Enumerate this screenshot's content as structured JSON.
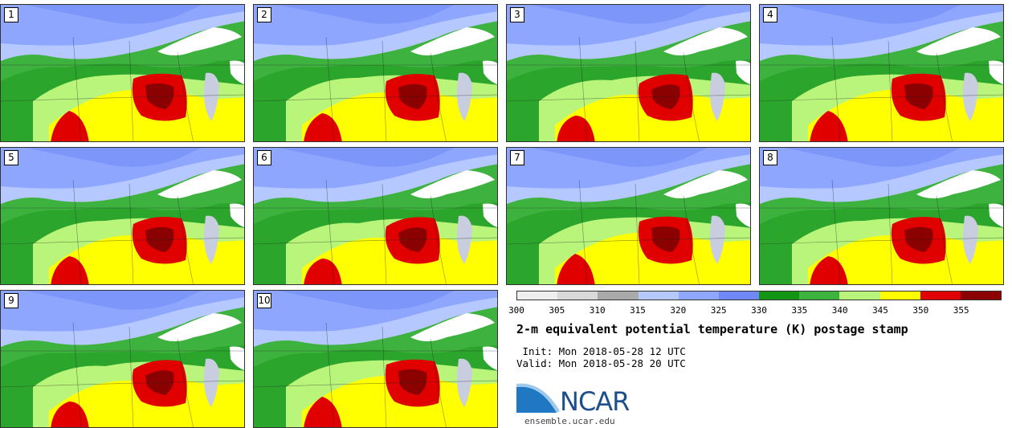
{
  "panels": [
    {
      "label": "1"
    },
    {
      "label": "2"
    },
    {
      "label": "3"
    },
    {
      "label": "4"
    },
    {
      "label": "5"
    },
    {
      "label": "6"
    },
    {
      "label": "7"
    },
    {
      "label": "8"
    },
    {
      "label": "9"
    },
    {
      "label": "10"
    }
  ],
  "colorbar": {
    "ticks": [
      "300",
      "305",
      "310",
      "315",
      "320",
      "325",
      "330",
      "335",
      "340",
      "345",
      "350",
      "355"
    ],
    "colors": [
      "#eeeeee",
      "#d9d9d9",
      "#aaaaaa",
      "#b5c8ff",
      "#8fa6ff",
      "#6f88f5",
      "#139413",
      "#3eb23e",
      "#b8f57a",
      "#ffff00",
      "#e00000",
      "#8b0000"
    ]
  },
  "map_colors": {
    "light_blue": "#b5c8ff",
    "blue": "#8fa6ff",
    "dark_blue": "#6f88f5",
    "dark_green": "#139413",
    "green": "#3eb23e",
    "light_green": "#b8f57a",
    "yellow": "#ffff00",
    "red": "#e00000",
    "dark_red": "#8b0000",
    "lake": "#ffffff",
    "lake_gray": "#c8cde0"
  },
  "title": "2-m equivalent potential temperature (K) postage stamp",
  "init": " Init: Mon 2018-05-28 12 UTC",
  "valid": "Valid: Mon 2018-05-28 20 UTC",
  "logo": {
    "text": "NCAR",
    "url": "ensemble.ucar.edu"
  }
}
